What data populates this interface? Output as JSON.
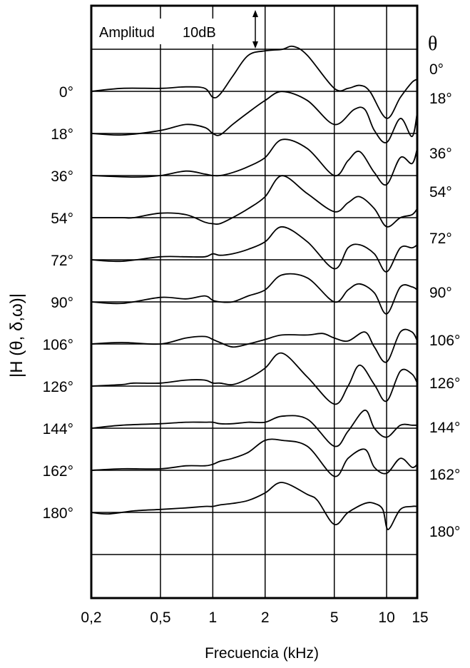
{
  "chart_data": {
    "type": "line",
    "xlabel": "Frecuencia (kHz)",
    "ylabel": "|H (θ, δ,ω)|",
    "x_scale": "log",
    "xlim": [
      0.2,
      15
    ],
    "x_ticks": [
      {
        "value": 0.2,
        "label": "0,2"
      },
      {
        "value": 0.5,
        "label": "0,5"
      },
      {
        "value": 1,
        "label": "1"
      },
      {
        "value": 2,
        "label": "2"
      },
      {
        "value": 5,
        "label": "5"
      },
      {
        "value": 10,
        "label": "10"
      },
      {
        "value": 15,
        "label": "15"
      }
    ],
    "grid": true,
    "amplitude_scale": {
      "label": "Amplitud",
      "value": "10dB"
    },
    "right_axis_title": "θ",
    "offset_step_db": 10,
    "series": [
      {
        "name": "0°",
        "x": [
          0.2,
          0.3,
          0.5,
          0.7,
          0.9,
          1.0,
          1.1,
          1.3,
          1.6,
          2,
          2.5,
          2.9,
          3.5,
          5,
          6,
          7,
          8,
          10,
          12,
          14,
          15
        ],
        "y": [
          0,
          1,
          1,
          1.5,
          1,
          -2,
          -1,
          5,
          12,
          13.5,
          14,
          15,
          12,
          1,
          1,
          2,
          0,
          -9,
          -2,
          3,
          4
        ]
      },
      {
        "name": "18°",
        "x": [
          0.2,
          0.3,
          0.5,
          0.7,
          0.9,
          1.0,
          1.1,
          1.3,
          1.6,
          2,
          2.5,
          3.5,
          5,
          6.5,
          7.5,
          8.5,
          10,
          12,
          14,
          15
        ],
        "y": [
          0,
          -0.5,
          1,
          3,
          2,
          0,
          -0.5,
          3,
          7,
          11,
          14,
          11,
          3,
          8,
          8,
          1,
          -3,
          5,
          -1,
          7
        ]
      },
      {
        "name": "36°",
        "x": [
          0.2,
          0.35,
          0.5,
          0.7,
          0.9,
          1.0,
          1.1,
          1.3,
          1.6,
          2,
          2.5,
          3.5,
          5,
          6,
          7,
          8.5,
          10,
          12,
          14,
          15
        ],
        "y": [
          0,
          -0.5,
          0,
          1.5,
          0.5,
          0,
          0,
          1,
          3,
          6,
          12,
          9,
          0,
          5,
          8,
          1,
          -3,
          6,
          4,
          9
        ]
      },
      {
        "name": "54°",
        "x": [
          0.2,
          0.3,
          0.35,
          0.5,
          0.7,
          0.9,
          1.0,
          1.1,
          1.3,
          1.6,
          2,
          2.5,
          3.5,
          5,
          6,
          7,
          8.5,
          10,
          12,
          14,
          15
        ],
        "y": [
          0,
          0,
          0,
          1.5,
          1,
          -1.5,
          -2,
          -2,
          0,
          3,
          7,
          14,
          8,
          2,
          5,
          7,
          3,
          -3,
          0,
          1,
          3
        ]
      },
      {
        "name": "72°",
        "x": [
          0.2,
          0.3,
          0.5,
          0.7,
          0.9,
          1.0,
          1.1,
          1.3,
          1.6,
          2,
          2.5,
          3.5,
          5,
          6,
          7,
          8.5,
          10,
          12,
          14,
          15
        ],
        "y": [
          0,
          -0.5,
          1,
          1,
          1,
          2,
          1.5,
          2,
          3.5,
          6,
          11,
          6,
          -3,
          4,
          5,
          2,
          -4,
          4,
          4,
          5
        ]
      },
      {
        "name": "90°",
        "x": [
          0.2,
          0.3,
          0.5,
          0.7,
          0.9,
          1.0,
          1.1,
          1.3,
          1.6,
          2,
          2.5,
          3.5,
          5,
          6,
          7,
          8.5,
          10,
          12,
          14,
          15
        ],
        "y": [
          0,
          -0.5,
          1.5,
          1,
          2,
          0.5,
          0,
          0,
          2,
          4,
          9,
          8,
          0,
          4,
          6,
          3,
          -4,
          5,
          5,
          4
        ]
      },
      {
        "name": "106°",
        "x": [
          0.2,
          0.3,
          0.5,
          0.7,
          0.9,
          1.0,
          1.1,
          1.3,
          1.6,
          2,
          2.5,
          3.5,
          4.3,
          5,
          6,
          7.5,
          8.5,
          10,
          12,
          14,
          15
        ],
        "y": [
          0,
          0.5,
          0,
          2,
          2.5,
          1.5,
          0.5,
          -1,
          0,
          1.5,
          3,
          3,
          3.5,
          2,
          1,
          4,
          -1,
          -6,
          4,
          4,
          1
        ]
      },
      {
        "name": "126°",
        "x": [
          0.2,
          0.3,
          0.35,
          0.5,
          0.7,
          0.9,
          1.0,
          1.1,
          1.3,
          1.6,
          2,
          2.5,
          3.5,
          5,
          6,
          7,
          8.5,
          10,
          12,
          14,
          15
        ],
        "y": [
          0,
          0.5,
          1,
          1,
          2,
          2,
          1,
          1,
          0.5,
          2.5,
          6,
          11,
          3,
          -6,
          0,
          7,
          0.5,
          -5,
          5,
          4,
          1
        ]
      },
      {
        "name": "144°",
        "x": [
          0.2,
          0.3,
          0.5,
          0.7,
          0.9,
          1.0,
          1.1,
          1.3,
          1.6,
          2,
          2.5,
          3.5,
          5,
          6,
          7.5,
          8.5,
          10,
          12,
          14,
          15
        ],
        "y": [
          0,
          1,
          1.5,
          2,
          2,
          2,
          1.5,
          1.5,
          2,
          2,
          4,
          3,
          -6,
          -1,
          6,
          0,
          -3,
          1,
          1,
          1
        ]
      },
      {
        "name": "162°",
        "x": [
          0.2,
          0.3,
          0.5,
          0.7,
          0.9,
          1.0,
          1.1,
          1.3,
          1.6,
          2,
          2.5,
          3.5,
          5,
          6,
          7.5,
          8.5,
          10,
          12,
          14,
          15
        ],
        "y": [
          0,
          0.5,
          0.5,
          1.5,
          1.5,
          2,
          3,
          4,
          6,
          10,
          10,
          8,
          -2,
          4,
          7,
          1,
          -1,
          4,
          1,
          2
        ]
      },
      {
        "name": "180°",
        "x": [
          0.2,
          0.25,
          0.35,
          0.5,
          0.7,
          0.9,
          1.0,
          1.1,
          1.3,
          1.6,
          2,
          2.5,
          3.5,
          4,
          5,
          6,
          7.5,
          8.5,
          9.5,
          10,
          10.5,
          12,
          14,
          15
        ],
        "y": [
          0,
          -0.5,
          0.5,
          1,
          1.5,
          2,
          2,
          2.5,
          3,
          4,
          6.5,
          10,
          6,
          4,
          -4,
          0,
          3,
          3,
          1,
          -5,
          -5,
          1,
          2,
          2
        ]
      }
    ]
  }
}
